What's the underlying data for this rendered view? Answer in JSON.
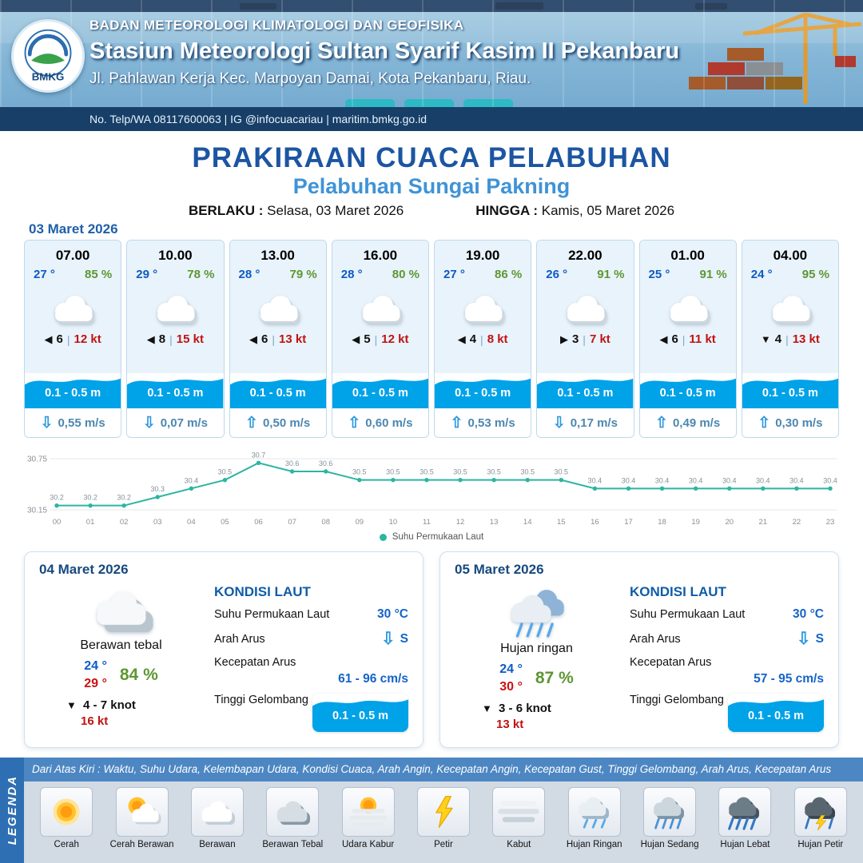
{
  "header": {
    "line1": "BADAN METEOROLOGI KLIMATOLOGI DAN GEOFISIKA",
    "line2": "Stasiun Meteorologi Sultan Syarif Kasim II Pekanbaru",
    "line3": "Jl. Pahlawan Kerja Kec. Marpoyan Damai, Kota Pekanbaru, Riau.",
    "contact": "No. Telp/WA 08117600063 | IG @infocuacariau | maritim.bmkg.go.id",
    "logo_text": "BMKG"
  },
  "title": {
    "main": "PRAKIRAAN CUACA PELABUHAN",
    "subtitle": "Pelabuhan Sungai Pakning",
    "berlaku_label": "BERLAKU :",
    "berlaku_value": "Selasa, 03 Maret 2026",
    "hingga_label": "HINGGA :",
    "hingga_value": "Kamis, 05 Maret 2026"
  },
  "ui": {
    "pipe": "|"
  },
  "hourly": {
    "date": "03 Maret 2026",
    "cards": [
      {
        "time": "07.00",
        "temp": "27 °",
        "rh": "85 %",
        "wind_arrow": "◀",
        "wind_val": "6",
        "wind_kt": "12 kt",
        "wave": "0.1 - 0.5 m",
        "cur_arrow": "⇩",
        "cur": "0,55 m/s"
      },
      {
        "time": "10.00",
        "temp": "29 °",
        "rh": "78 %",
        "wind_arrow": "◀",
        "wind_val": "8",
        "wind_kt": "15 kt",
        "wave": "0.1 - 0.5 m",
        "cur_arrow": "⇩",
        "cur": "0,07 m/s"
      },
      {
        "time": "13.00",
        "temp": "28 °",
        "rh": "79 %",
        "wind_arrow": "◀",
        "wind_val": "6",
        "wind_kt": "13 kt",
        "wave": "0.1 - 0.5 m",
        "cur_arrow": "⇧",
        "cur": "0,50 m/s"
      },
      {
        "time": "16.00",
        "temp": "28 °",
        "rh": "80 %",
        "wind_arrow": "◀",
        "wind_val": "5",
        "wind_kt": "12 kt",
        "wave": "0.1 - 0.5 m",
        "cur_arrow": "⇧",
        "cur": "0,60 m/s"
      },
      {
        "time": "19.00",
        "temp": "27 °",
        "rh": "86 %",
        "wind_arrow": "◀",
        "wind_val": "4",
        "wind_kt": "8 kt",
        "wave": "0.1 - 0.5 m",
        "cur_arrow": "⇧",
        "cur": "0,53 m/s"
      },
      {
        "time": "22.00",
        "temp": "26 °",
        "rh": "91 %",
        "wind_arrow": "▶",
        "wind_val": "3",
        "wind_kt": "7 kt",
        "wave": "0.1 - 0.5 m",
        "cur_arrow": "⇩",
        "cur": "0,17 m/s"
      },
      {
        "time": "01.00",
        "temp": "25 °",
        "rh": "91 %",
        "wind_arrow": "◀",
        "wind_val": "6",
        "wind_kt": "11 kt",
        "wave": "0.1 - 0.5 m",
        "cur_arrow": "⇧",
        "cur": "0,49 m/s"
      },
      {
        "time": "04.00",
        "temp": "24 °",
        "rh": "95 %",
        "wind_arrow": "▼",
        "wind_val": "4",
        "wind_kt": "13 kt",
        "wave": "0.1 - 0.5 m",
        "cur_arrow": "⇧",
        "cur": "0,30 m/s"
      }
    ]
  },
  "chart_data": {
    "type": "line",
    "x": [
      "00",
      "01",
      "02",
      "03",
      "04",
      "05",
      "06",
      "07",
      "08",
      "09",
      "10",
      "11",
      "12",
      "13",
      "14",
      "15",
      "16",
      "17",
      "18",
      "19",
      "20",
      "21",
      "22",
      "23"
    ],
    "series": [
      {
        "name": "Suhu Permukaan Laut",
        "values": [
          30.2,
          30.2,
          30.2,
          30.3,
          30.4,
          30.5,
          30.7,
          30.6,
          30.6,
          30.5,
          30.5,
          30.5,
          30.5,
          30.5,
          30.5,
          30.5,
          30.4,
          30.4,
          30.4,
          30.4,
          30.4,
          30.4,
          30.4,
          30.4
        ]
      }
    ],
    "ylim": [
      30.15,
      30.75
    ],
    "yticks": [
      30.15,
      30.75
    ],
    "line_color": "#2cb5a2",
    "legend_position": "bottom",
    "grid": true
  },
  "daily": {
    "labels": {
      "kondisi": "KONDISI LAUT",
      "sst": "Suhu Permukaan Laut",
      "arah": "Arah Arus",
      "kecepatan": "Kecepatan Arus",
      "gelombang": "Tinggi Gelombang"
    },
    "cards": [
      {
        "date": "04 Maret 2026",
        "condition": "Berawan tebal",
        "tmin": "24 °",
        "tmax": "29 °",
        "rh": "84 %",
        "wind_arrow": "▼",
        "wind": "4 - 7 knot",
        "gust": "16 kt",
        "sst": "30 °C",
        "arus_arrow": "⇩",
        "arus_dir": "S",
        "arus_speed": "61 - 96 cm/s",
        "wave": "0.1 - 0.5 m"
      },
      {
        "date": "05 Maret 2026",
        "condition": "Hujan ringan",
        "tmin": "24 °",
        "tmax": "30 °",
        "rh": "87 %",
        "wind_arrow": "▼",
        "wind": "3 - 6 knot",
        "gust": "13 kt",
        "sst": "30 °C",
        "arus_arrow": "⇩",
        "arus_dir": "S",
        "arus_speed": "57 - 95 cm/s",
        "wave": "0.1 - 0.5 m"
      }
    ]
  },
  "legend": {
    "title": "LEGENDA",
    "note": "Dari Atas Kiri : Waktu, Suhu Udara, Kelembapan Udara, Kondisi Cuaca, Arah Angin, Kecepatan Angin, Kecepatan Gust, Tinggi Gelombang, Arah Arus, Kecepatan Arus",
    "items": [
      {
        "label": "Cerah",
        "icon": "sun"
      },
      {
        "label": "Cerah Berawan",
        "icon": "sun-cloud"
      },
      {
        "label": "Berawan",
        "icon": "cloud"
      },
      {
        "label": "Berawan Tebal",
        "icon": "cloud-thick"
      },
      {
        "label": "Udara Kabur",
        "icon": "haze"
      },
      {
        "label": "Petir",
        "icon": "lightning"
      },
      {
        "label": "Kabut",
        "icon": "fog"
      },
      {
        "label": "Hujan Ringan",
        "icon": "rain-light"
      },
      {
        "label": "Hujan Sedang",
        "icon": "rain-moderate"
      },
      {
        "label": "Hujan Lebat",
        "icon": "rain-heavy"
      },
      {
        "label": "Hujan Petir",
        "icon": "rain-thunder"
      }
    ]
  }
}
